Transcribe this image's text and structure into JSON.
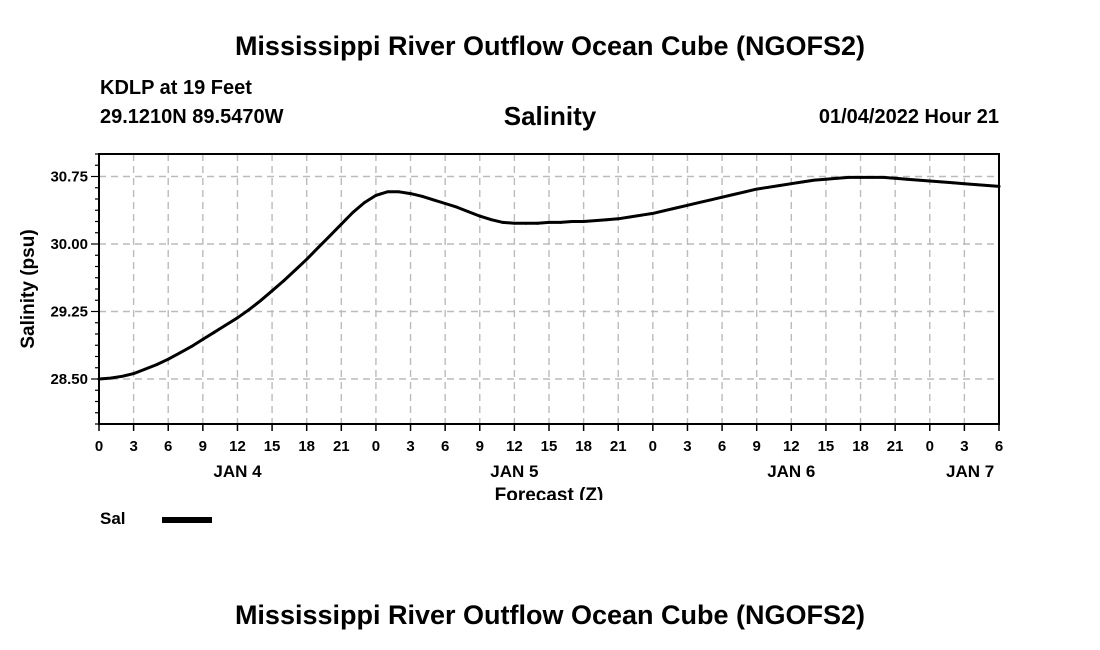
{
  "page": {
    "title_top": "Mississippi River Outflow Ocean Cube (NGOFS2)",
    "title_bottom": "Mississippi River Outflow Ocean Cube (NGOFS2)",
    "station": "KDLP at 19 Feet",
    "coords": "29.1210N  89.5470W",
    "subtitle": "Salinity",
    "datetime": "01/04/2022 Hour 21"
  },
  "colors": {
    "line": "#000000",
    "grid": "#bbbbbb",
    "background": "#ffffff"
  },
  "chart_data": {
    "type": "line",
    "title": "Salinity",
    "xlabel": "Forecast (Z)",
    "ylabel": "Salinity (psu)",
    "xlim": [
      0,
      78
    ],
    "ylim": [
      28.0,
      31.0
    ],
    "grid": true,
    "y_ticks": [
      28.5,
      29.25,
      30.0,
      30.75
    ],
    "y_tick_labels": [
      "28.50",
      "29.25",
      "30.00",
      "30.75"
    ],
    "x_ticks": [
      0,
      3,
      6,
      9,
      12,
      15,
      18,
      21,
      24,
      27,
      30,
      33,
      36,
      39,
      42,
      45,
      48,
      51,
      54,
      57,
      60,
      63,
      66,
      69,
      72,
      75,
      78
    ],
    "x_tick_labels": [
      "0",
      "3",
      "6",
      "9",
      "12",
      "15",
      "18",
      "21",
      "0",
      "3",
      "6",
      "9",
      "12",
      "15",
      "18",
      "21",
      "0",
      "3",
      "6",
      "9",
      "12",
      "15",
      "18",
      "21",
      "0",
      "3",
      "6"
    ],
    "day_labels": [
      {
        "x": 12,
        "label": "JAN 4"
      },
      {
        "x": 36,
        "label": "JAN 5"
      },
      {
        "x": 60,
        "label": "JAN 6"
      },
      {
        "x": 75.5,
        "label": "JAN 7"
      }
    ],
    "legend": [
      {
        "name": "Sal",
        "position": "bottom-left"
      }
    ],
    "series": [
      {
        "name": "Sal",
        "x": [
          0,
          1,
          2,
          3,
          4,
          5,
          6,
          7,
          8,
          9,
          10,
          11,
          12,
          13,
          14,
          15,
          16,
          17,
          18,
          19,
          20,
          21,
          22,
          23,
          24,
          25,
          26,
          27,
          28,
          29,
          30,
          31,
          32,
          33,
          34,
          35,
          36,
          37,
          38,
          39,
          40,
          41,
          42,
          43,
          44,
          45,
          46,
          47,
          48,
          49,
          50,
          51,
          52,
          53,
          54,
          55,
          56,
          57,
          58,
          59,
          60,
          61,
          62,
          63,
          64,
          65,
          66,
          67,
          68,
          69,
          70,
          71,
          72,
          73,
          74,
          75,
          76,
          77,
          78
        ],
        "values": [
          28.5,
          28.51,
          28.53,
          28.56,
          28.61,
          28.66,
          28.72,
          28.79,
          28.86,
          28.94,
          29.02,
          29.1,
          29.18,
          29.27,
          29.37,
          29.48,
          29.59,
          29.71,
          29.83,
          29.96,
          30.09,
          30.22,
          30.35,
          30.46,
          30.54,
          30.58,
          30.58,
          30.56,
          30.53,
          30.49,
          30.45,
          30.41,
          30.36,
          30.31,
          30.27,
          30.24,
          30.23,
          30.23,
          30.23,
          30.24,
          30.24,
          30.25,
          30.25,
          30.26,
          30.27,
          30.28,
          30.3,
          30.32,
          30.34,
          30.37,
          30.4,
          30.43,
          30.46,
          30.49,
          30.52,
          30.55,
          30.58,
          30.61,
          30.63,
          30.65,
          30.67,
          30.69,
          30.71,
          30.72,
          30.73,
          30.74,
          30.74,
          30.74,
          30.74,
          30.73,
          30.72,
          30.71,
          30.7,
          30.69,
          30.68,
          30.67,
          30.66,
          30.65,
          30.64
        ]
      }
    ]
  }
}
